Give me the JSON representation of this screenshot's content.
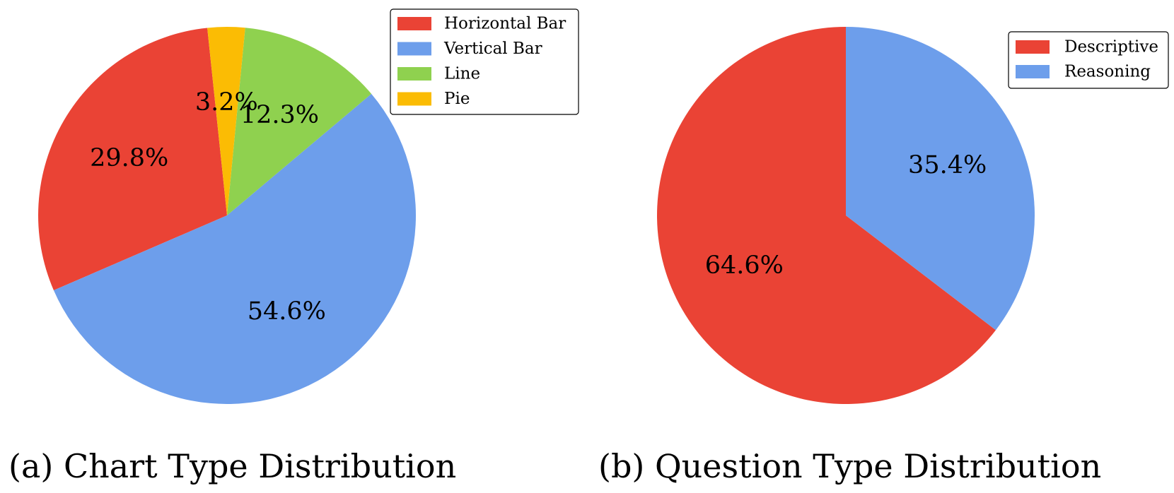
{
  "chart_data": [
    {
      "type": "pie",
      "caption": "(a) Chart Type Distribution",
      "legend_position": "top-right",
      "slices": [
        {
          "label": "Horizontal Bar",
          "value": 29.8,
          "value_label": "29.8%",
          "color": "#EA4335"
        },
        {
          "label": "Vertical Bar",
          "value": 54.6,
          "value_label": "54.6%",
          "color": "#6D9EEB"
        },
        {
          "label": "Line",
          "value": 12.3,
          "value_label": "12.3%",
          "color": "#8FD14F"
        },
        {
          "label": "Pie",
          "value": 3.2,
          "value_label": "3.2%",
          "color": "#FBBC04"
        }
      ]
    },
    {
      "type": "pie",
      "caption": "(b) Question Type Distribution",
      "legend_position": "top-right",
      "slices": [
        {
          "label": "Descriptive",
          "value": 64.6,
          "value_label": "64.6%",
          "color": "#EA4335"
        },
        {
          "label": "Reasoning",
          "value": 35.4,
          "value_label": "35.4%",
          "color": "#6D9EEB"
        }
      ]
    }
  ]
}
